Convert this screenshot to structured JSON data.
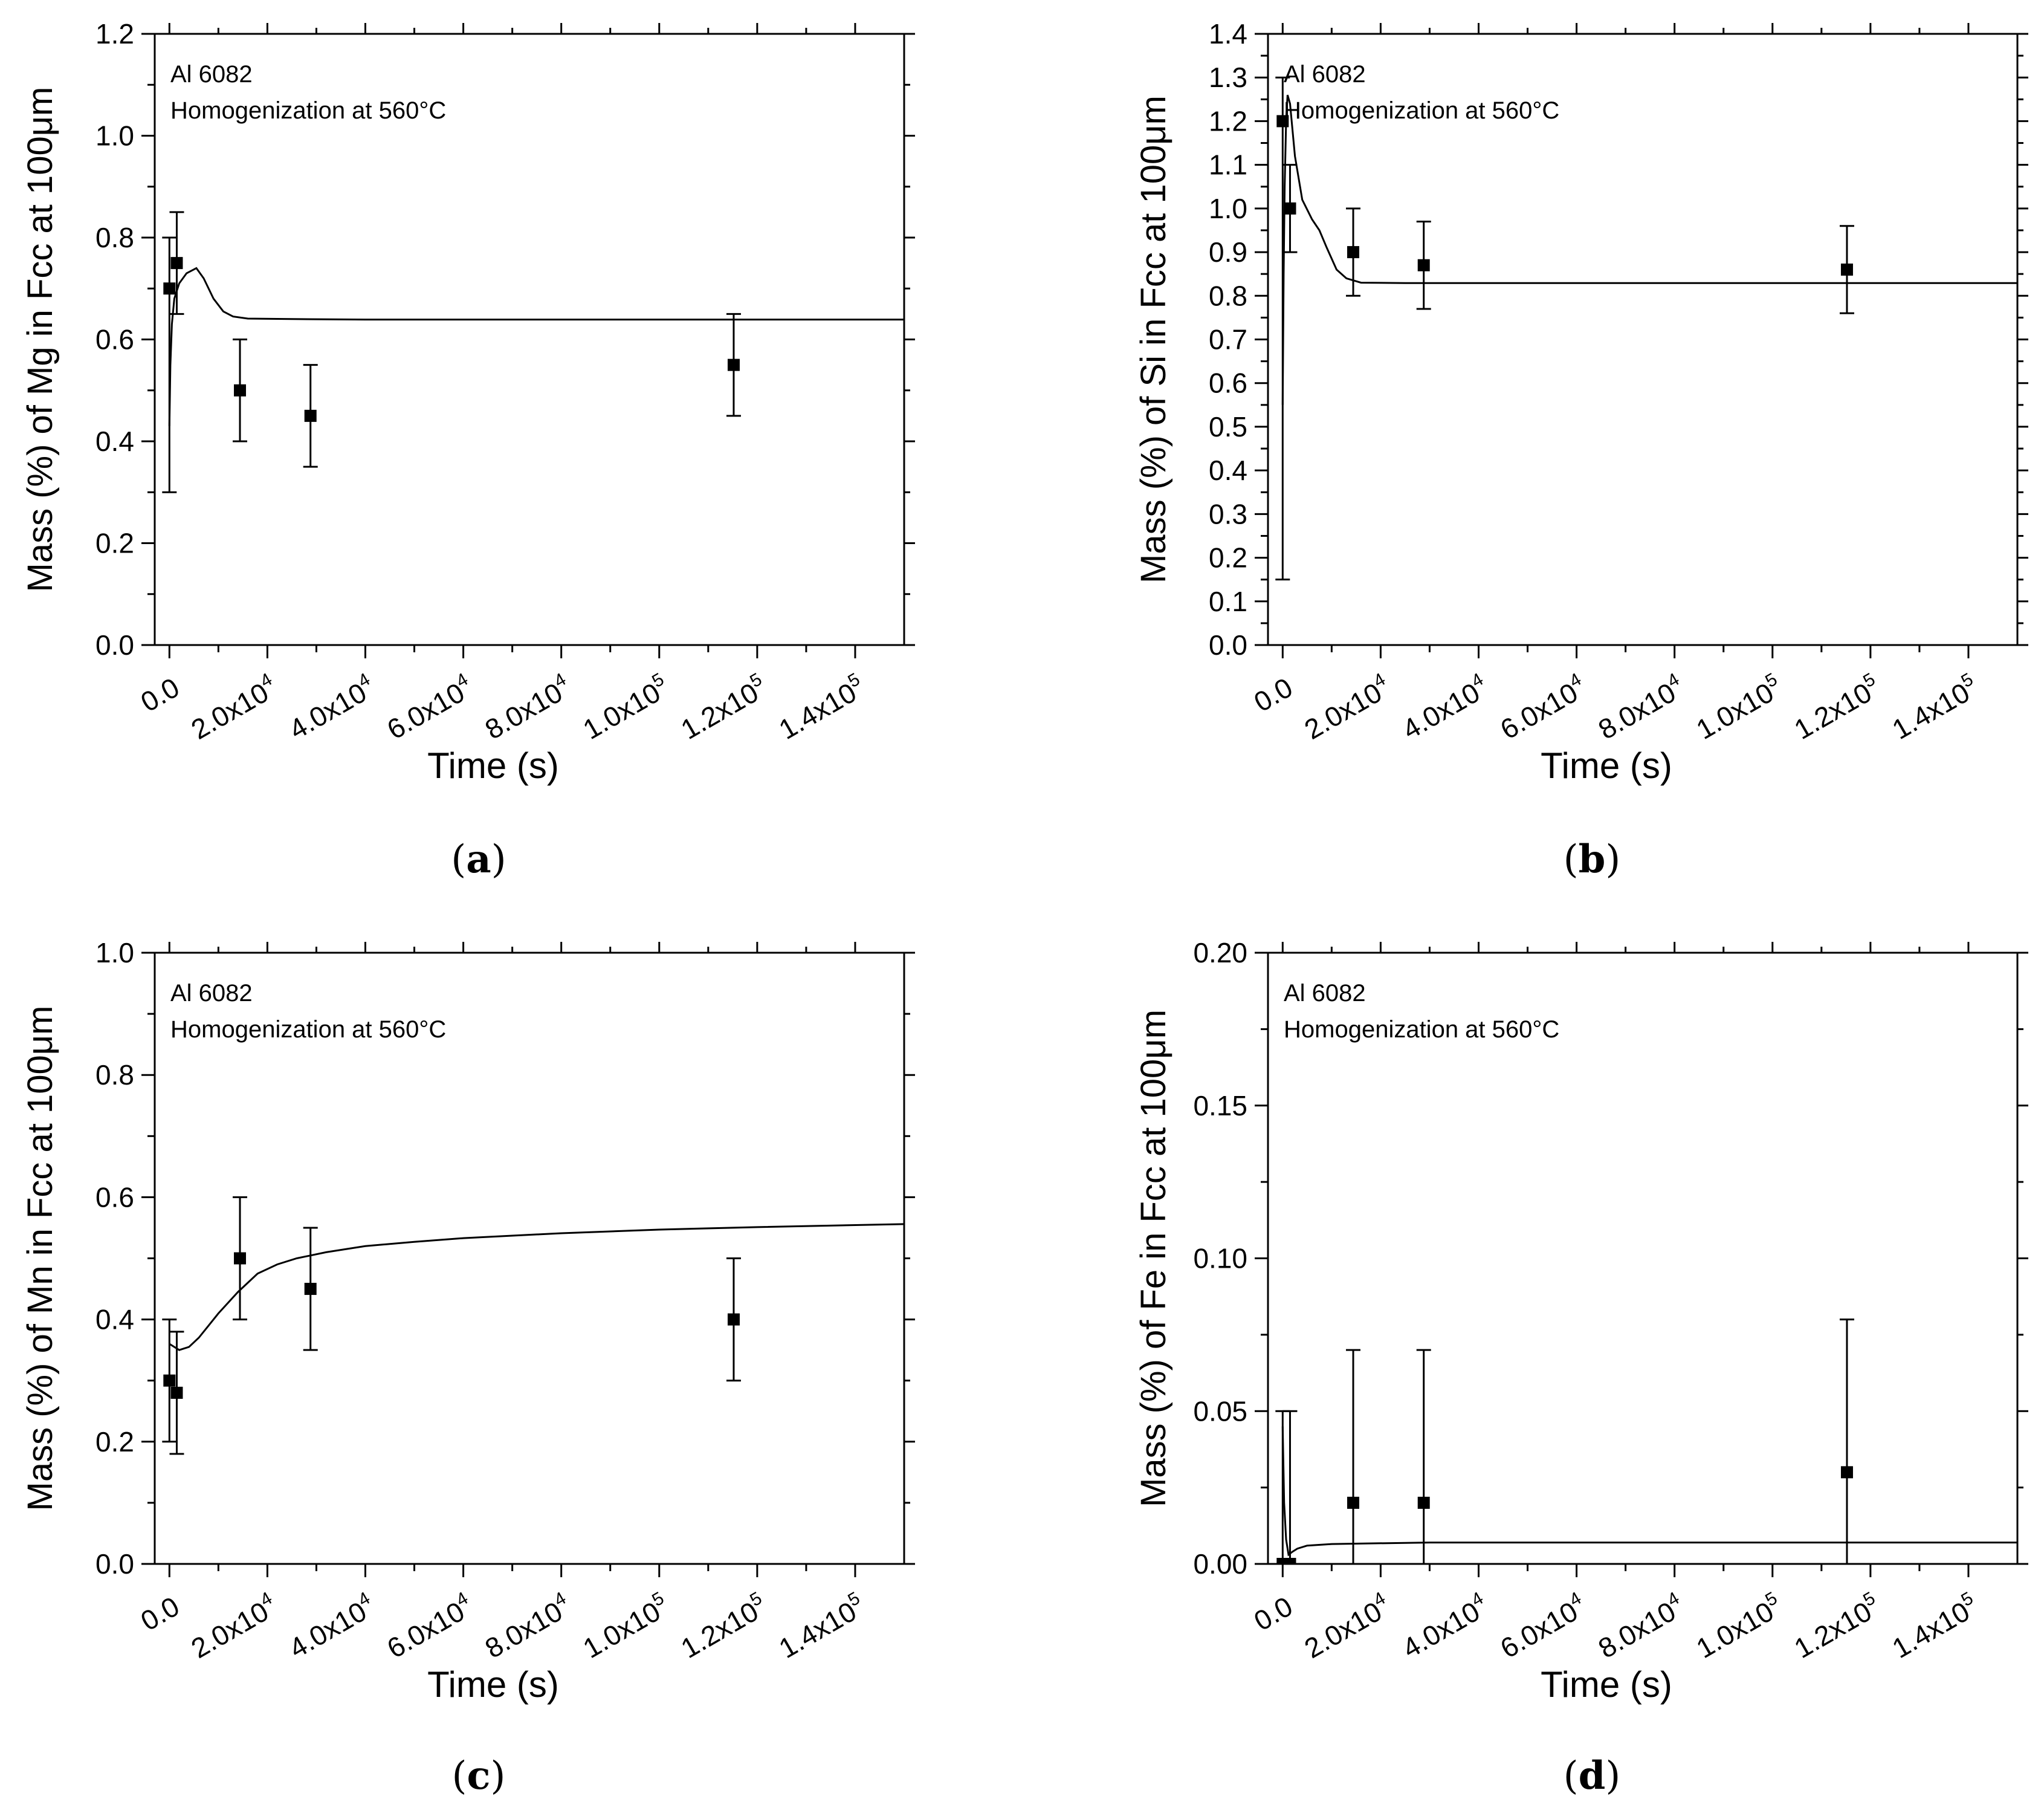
{
  "figure": {
    "panels": [
      {
        "label_open": "(",
        "label_letter": "a",
        "label_close": ")"
      },
      {
        "label_open": "(",
        "label_letter": "b",
        "label_close": ")"
      },
      {
        "label_open": "(",
        "label_letter": "c",
        "label_close": ")"
      },
      {
        "label_open": "(",
        "label_letter": "d",
        "label_close": ")"
      }
    ]
  },
  "chart_data": [
    {
      "type": "scatter",
      "panel": "a",
      "annotation_lines": [
        "Al 6082",
        "Homogenization at 560°C"
      ],
      "xlabel": "Time (s)",
      "ylabel": "Mass (%) of Mg in Fcc at 100μm",
      "xlim": [
        -3000,
        150000
      ],
      "ylim": [
        0,
        1.2
      ],
      "x_ticks": [
        0,
        20000,
        40000,
        60000,
        80000,
        100000,
        120000,
        140000
      ],
      "x_tick_labels": [
        {
          "mant": "0.0",
          "exp": ""
        },
        {
          "mant": "2.0x10",
          "exp": "4"
        },
        {
          "mant": "4.0x10",
          "exp": "4"
        },
        {
          "mant": "6.0x10",
          "exp": "4"
        },
        {
          "mant": "8.0x10",
          "exp": "4"
        },
        {
          "mant": "1.0x10",
          "exp": "5"
        },
        {
          "mant": "1.2x10",
          "exp": "5"
        },
        {
          "mant": "1.4x10",
          "exp": "5"
        }
      ],
      "y_ticks": [
        0,
        0.2,
        0.4,
        0.6,
        0.8,
        1.0,
        1.2
      ],
      "y_tick_labels": [
        "0.0",
        "0.2",
        "0.4",
        "0.6",
        "0.8",
        "1.0",
        "1.2"
      ],
      "points": [
        {
          "x": 0,
          "y": 0.7,
          "err": 0.1,
          "bar_low": 0.3
        },
        {
          "x": 1500,
          "y": 0.75,
          "err": 0.1
        },
        {
          "x": 14400,
          "y": 0.5,
          "err": 0.1
        },
        {
          "x": 28800,
          "y": 0.45,
          "err": 0.1
        },
        {
          "x": 115200,
          "y": 0.55,
          "err": 0.1
        }
      ],
      "simulation_curve": [
        [
          0,
          0.43
        ],
        [
          200,
          0.55
        ],
        [
          500,
          0.63
        ],
        [
          1000,
          0.68
        ],
        [
          2000,
          0.71
        ],
        [
          3500,
          0.73
        ],
        [
          5500,
          0.74
        ],
        [
          7000,
          0.72
        ],
        [
          9000,
          0.68
        ],
        [
          11000,
          0.655
        ],
        [
          13000,
          0.645
        ],
        [
          16000,
          0.641
        ],
        [
          25000,
          0.64
        ],
        [
          40000,
          0.639
        ],
        [
          80000,
          0.639
        ],
        [
          150000,
          0.639
        ]
      ]
    },
    {
      "type": "scatter",
      "panel": "b",
      "annotation_lines": [
        "Al 6082",
        "Homogenization at 560°C"
      ],
      "xlabel": "Time (s)",
      "ylabel": "Mass (%) of Si in Fcc at 100μm",
      "xlim": [
        -3000,
        150000
      ],
      "ylim": [
        0,
        1.4
      ],
      "x_ticks": [
        0,
        20000,
        40000,
        60000,
        80000,
        100000,
        120000,
        140000
      ],
      "x_tick_labels": [
        {
          "mant": "0.0",
          "exp": ""
        },
        {
          "mant": "2.0x10",
          "exp": "4"
        },
        {
          "mant": "4.0x10",
          "exp": "4"
        },
        {
          "mant": "6.0x10",
          "exp": "4"
        },
        {
          "mant": "8.0x10",
          "exp": "4"
        },
        {
          "mant": "1.0x10",
          "exp": "5"
        },
        {
          "mant": "1.2x10",
          "exp": "5"
        },
        {
          "mant": "1.4x10",
          "exp": "5"
        }
      ],
      "y_ticks": [
        0,
        0.1,
        0.2,
        0.3,
        0.4,
        0.5,
        0.6,
        0.7,
        0.8,
        0.9,
        1.0,
        1.1,
        1.2,
        1.3,
        1.4
      ],
      "y_tick_labels": [
        "0.0",
        "0.1",
        "0.2",
        "0.3",
        "0.4",
        "0.5",
        "0.6",
        "0.7",
        "0.8",
        "0.9",
        "1.0",
        "1.1",
        "1.2",
        "1.3",
        "1.4"
      ],
      "points": [
        {
          "x": 0,
          "y": 1.2,
          "err": 0.1,
          "bar_low": 0.15
        },
        {
          "x": 1500,
          "y": 1.0,
          "err": 0.1
        },
        {
          "x": 14400,
          "y": 0.9,
          "err": 0.1
        },
        {
          "x": 28800,
          "y": 0.87,
          "err": 0.1
        },
        {
          "x": 115200,
          "y": 0.86,
          "err": 0.1
        }
      ],
      "simulation_curve": [
        [
          0,
          0.55
        ],
        [
          200,
          0.85
        ],
        [
          400,
          1.05
        ],
        [
          700,
          1.2
        ],
        [
          1000,
          1.26
        ],
        [
          1500,
          1.24
        ],
        [
          2500,
          1.12
        ],
        [
          4000,
          1.02
        ],
        [
          6000,
          0.975
        ],
        [
          7500,
          0.95
        ],
        [
          9000,
          0.91
        ],
        [
          11000,
          0.86
        ],
        [
          13000,
          0.84
        ],
        [
          16000,
          0.83
        ],
        [
          25000,
          0.829
        ],
        [
          60000,
          0.829
        ],
        [
          150000,
          0.829
        ]
      ]
    },
    {
      "type": "scatter",
      "panel": "c",
      "annotation_lines": [
        "Al 6082",
        "Homogenization at 560°C"
      ],
      "xlabel": "Time (s)",
      "ylabel": "Mass (%) of Mn in Fcc at 100μm",
      "xlim": [
        -3000,
        150000
      ],
      "ylim": [
        0,
        1.0
      ],
      "x_ticks": [
        0,
        20000,
        40000,
        60000,
        80000,
        100000,
        120000,
        140000
      ],
      "x_tick_labels": [
        {
          "mant": "0.0",
          "exp": ""
        },
        {
          "mant": "2.0x10",
          "exp": "4"
        },
        {
          "mant": "4.0x10",
          "exp": "4"
        },
        {
          "mant": "6.0x10",
          "exp": "4"
        },
        {
          "mant": "8.0x10",
          "exp": "4"
        },
        {
          "mant": "1.0x10",
          "exp": "5"
        },
        {
          "mant": "1.2x10",
          "exp": "5"
        },
        {
          "mant": "1.4x10",
          "exp": "5"
        }
      ],
      "y_ticks": [
        0,
        0.2,
        0.4,
        0.6,
        0.8,
        1.0
      ],
      "y_tick_labels": [
        "0.0",
        "0.2",
        "0.4",
        "0.6",
        "0.8",
        "1.0"
      ],
      "points": [
        {
          "x": 0,
          "y": 0.3,
          "err": 0.1
        },
        {
          "x": 1500,
          "y": 0.28,
          "err": 0.1
        },
        {
          "x": 14400,
          "y": 0.5,
          "err": 0.1
        },
        {
          "x": 28800,
          "y": 0.45,
          "err": 0.1
        },
        {
          "x": 115200,
          "y": 0.4,
          "err": 0.1
        }
      ],
      "simulation_curve": [
        [
          0,
          0.36
        ],
        [
          2000,
          0.35
        ],
        [
          4000,
          0.355
        ],
        [
          6000,
          0.37
        ],
        [
          8000,
          0.39
        ],
        [
          10000,
          0.41
        ],
        [
          14000,
          0.445
        ],
        [
          18000,
          0.475
        ],
        [
          22000,
          0.49
        ],
        [
          26000,
          0.5
        ],
        [
          32000,
          0.51
        ],
        [
          40000,
          0.52
        ],
        [
          50000,
          0.527
        ],
        [
          60000,
          0.533
        ],
        [
          80000,
          0.541
        ],
        [
          100000,
          0.547
        ],
        [
          120000,
          0.551
        ],
        [
          150000,
          0.556
        ]
      ]
    },
    {
      "type": "scatter",
      "panel": "d",
      "annotation_lines": [
        "Al 6082",
        "Homogenization at 560°C"
      ],
      "xlabel": "Time (s)",
      "ylabel": "Mass (%) of Fe in Fcc at 100μm",
      "xlim": [
        -3000,
        150000
      ],
      "ylim": [
        0,
        0.2
      ],
      "x_ticks": [
        0,
        20000,
        40000,
        60000,
        80000,
        100000,
        120000,
        140000
      ],
      "x_tick_labels": [
        {
          "mant": "0.0",
          "exp": ""
        },
        {
          "mant": "2.0x10",
          "exp": "4"
        },
        {
          "mant": "4.0x10",
          "exp": "4"
        },
        {
          "mant": "6.0x10",
          "exp": "4"
        },
        {
          "mant": "8.0x10",
          "exp": "4"
        },
        {
          "mant": "1.0x10",
          "exp": "5"
        },
        {
          "mant": "1.2x10",
          "exp": "5"
        },
        {
          "mant": "1.4x10",
          "exp": "5"
        }
      ],
      "y_ticks": [
        0,
        0.05,
        0.1,
        0.15,
        0.2
      ],
      "y_tick_labels": [
        "0.00",
        "0.05",
        "0.10",
        "0.15",
        "0.20"
      ],
      "points": [
        {
          "x": 0,
          "y": 0.0,
          "err": 0.05
        },
        {
          "x": 1500,
          "y": 0.0,
          "err": 0.05
        },
        {
          "x": 14400,
          "y": 0.02,
          "err": 0.05
        },
        {
          "x": 28800,
          "y": 0.02,
          "err": 0.05
        },
        {
          "x": 115200,
          "y": 0.03,
          "err": 0.05
        }
      ],
      "simulation_curve": [
        [
          0,
          0.045
        ],
        [
          300,
          0.02
        ],
        [
          700,
          0.008
        ],
        [
          1200,
          0.003
        ],
        [
          2000,
          0.004
        ],
        [
          3000,
          0.005
        ],
        [
          5000,
          0.006
        ],
        [
          10000,
          0.0065
        ],
        [
          30000,
          0.007
        ],
        [
          150000,
          0.007
        ]
      ]
    }
  ]
}
